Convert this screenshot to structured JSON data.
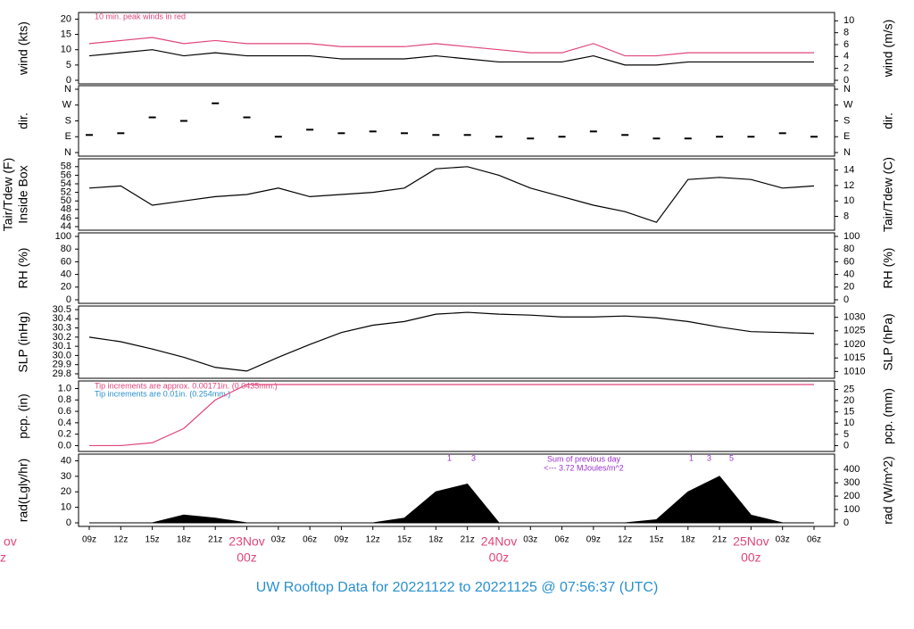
{
  "title": "UW Rooftop Data for 20221122  to  20221125 @ 07:56:37  (UTC)",
  "edge_labels": [
    "ov",
    "z"
  ],
  "chart_data": [
    {
      "type": "line",
      "ylabel": "wind (kts)",
      "y2label": "wind (m/s)",
      "ylim": [
        0,
        21
      ],
      "yticks": [
        0,
        5,
        10,
        15,
        20
      ],
      "y2lim": [
        0,
        10.8
      ],
      "y2ticks": [
        0,
        2,
        4,
        6,
        8,
        10
      ],
      "annotations": [
        "10 min. peak winds in red"
      ],
      "series": [
        {
          "color": "#e0457b",
          "values": [
            12,
            13,
            14,
            12,
            13,
            12,
            12,
            12,
            11,
            11,
            11,
            12,
            11,
            10,
            9,
            9,
            12,
            8,
            8,
            9,
            9,
            9,
            9,
            9
          ]
        },
        {
          "color": "#000000",
          "values": [
            8,
            9,
            10,
            8,
            9,
            8,
            8,
            8,
            7,
            7,
            7,
            8,
            7,
            6,
            6,
            6,
            8,
            5,
            5,
            6,
            6,
            6,
            6,
            6
          ]
        }
      ]
    },
    {
      "type": "scatter",
      "ylabel": "dir.",
      "y2label": "dir.",
      "ylim": [
        0,
        360
      ],
      "yticks": [
        {
          "value": 0,
          "label": "N"
        },
        {
          "value": 90,
          "label": "E"
        },
        {
          "value": 180,
          "label": "S"
        },
        {
          "value": 270,
          "label": "W"
        },
        {
          "value": 360,
          "label": "N"
        }
      ],
      "y2ticks": [
        {
          "value": 0,
          "label": "N"
        },
        {
          "value": 90,
          "label": "E"
        },
        {
          "value": 180,
          "label": "S"
        },
        {
          "value": 270,
          "label": "W"
        },
        {
          "value": 360,
          "label": "N"
        }
      ],
      "series": [
        {
          "color": "#000000",
          "values": [
            100,
            110,
            200,
            180,
            280,
            200,
            90,
            130,
            110,
            120,
            110,
            100,
            100,
            90,
            80,
            90,
            120,
            100,
            80,
            80,
            90,
            90,
            110,
            90
          ]
        }
      ]
    },
    {
      "type": "line",
      "ylabel": "Tair/Tdew (F)",
      "ylabel2": "Inside Box",
      "y2label": "Tair/Tdew (C)",
      "ylim": [
        44,
        59
      ],
      "yticks": [
        44,
        46,
        48,
        50,
        52,
        54,
        56,
        58
      ],
      "y2lim": [
        6.67,
        15
      ],
      "y2ticks": [
        8,
        10,
        12,
        14
      ],
      "series": [
        {
          "color": "#000000",
          "values": [
            53,
            53.5,
            49,
            50,
            51,
            51.5,
            53,
            51,
            51.5,
            52,
            53,
            57.5,
            58,
            56,
            53,
            51,
            49,
            47.5,
            45,
            55,
            55.5,
            55,
            53,
            53.5
          ]
        }
      ]
    },
    {
      "type": "line",
      "ylabel": "RH (%)",
      "y2label": "RH (%)",
      "ylim": [
        0,
        100
      ],
      "yticks": [
        0,
        20,
        40,
        60,
        80,
        100
      ],
      "y2lim": [
        0,
        100
      ],
      "y2ticks": [
        0,
        20,
        40,
        60,
        80,
        100
      ],
      "series": []
    },
    {
      "type": "line",
      "ylabel": "SLP (inHg)",
      "y2label": "SLP (hPa)",
      "ylim": [
        29.79,
        30.5
      ],
      "yticks": [
        29.8,
        29.9,
        {
          "value": 30,
          "label": "30.0"
        },
        30.1,
        30.2,
        30.3,
        30.4,
        30.5
      ],
      "y2lim": [
        1008.8,
        1032.85
      ],
      "y2ticks": [
        1010,
        1015,
        1020,
        1025,
        1030
      ],
      "series": [
        {
          "color": "#000000",
          "values": [
            30.2,
            30.15,
            30.07,
            29.98,
            29.87,
            29.83,
            29.98,
            30.12,
            30.25,
            30.33,
            30.37,
            30.45,
            30.47,
            30.45,
            30.44,
            30.42,
            30.42,
            30.43,
            30.41,
            30.37,
            30.31,
            30.26,
            30.25,
            30.24
          ]
        }
      ]
    },
    {
      "type": "line",
      "ylabel": "pcp. (in)",
      "y2label": "pcp. (mm)",
      "ylim": [
        -0.04,
        1.07
      ],
      "yticks": [
        {
          "value": 0,
          "label": "0.0"
        },
        0.2,
        0.4,
        0.6,
        0.8,
        {
          "value": 1,
          "label": "1.0"
        }
      ],
      "y2lim": [
        -1.016,
        27.178
      ],
      "y2ticks": [
        0,
        5,
        10,
        15,
        20,
        25
      ],
      "annotations": [
        "Tip increments are approx. 0.00171in. (0.0435mm.)",
        "Tip increments are 0.01in. (0.254mm.)"
      ],
      "series": [
        {
          "color": "#e0457b",
          "values": [
            0,
            0,
            0.05,
            0.3,
            0.8,
            1.07,
            1.07,
            1.07,
            1.07,
            1.07,
            1.07,
            1.07,
            1.07,
            1.07,
            1.07,
            1.07,
            1.07,
            1.07,
            1.07,
            1.07,
            1.07,
            1.07,
            1.07,
            1.07
          ]
        }
      ]
    },
    {
      "type": "area",
      "ylabel": "rad(Lgly/hr)",
      "y2label": "rad (W/m^2)",
      "ylim": [
        0,
        42
      ],
      "yticks": [
        0,
        10,
        20,
        30,
        40
      ],
      "y2lim": [
        0,
        488
      ],
      "y2ticks": [
        0,
        100,
        200,
        300,
        400
      ],
      "annotations": [
        "Sum of previous day",
        "<--- 3.72 MJoules/m^2",
        "1",
        "3",
        "1",
        "3",
        "5"
      ],
      "categories": [
        "09z",
        "12z",
        "15z",
        "18z",
        "21z",
        "00z",
        "03z",
        "06z",
        "09z",
        "12z",
        "15z",
        "18z",
        "21z",
        "00z",
        "03z",
        "06z",
        "09z",
        "12z",
        "15z",
        "18z",
        "21z",
        "00z",
        "03z",
        "06z"
      ],
      "dates": [
        null,
        null,
        null,
        null,
        null,
        "23Nov",
        null,
        null,
        null,
        null,
        null,
        null,
        null,
        "24Nov",
        null,
        null,
        null,
        null,
        null,
        null,
        null,
        "25Nov",
        null,
        null
      ],
      "series": [
        {
          "color": "#000000",
          "values": [
            0,
            0,
            0,
            5,
            3,
            0,
            0,
            0,
            0,
            0,
            3,
            20,
            25,
            0,
            0,
            0,
            0,
            0,
            2,
            20,
            30,
            5,
            0,
            0
          ]
        }
      ]
    }
  ]
}
